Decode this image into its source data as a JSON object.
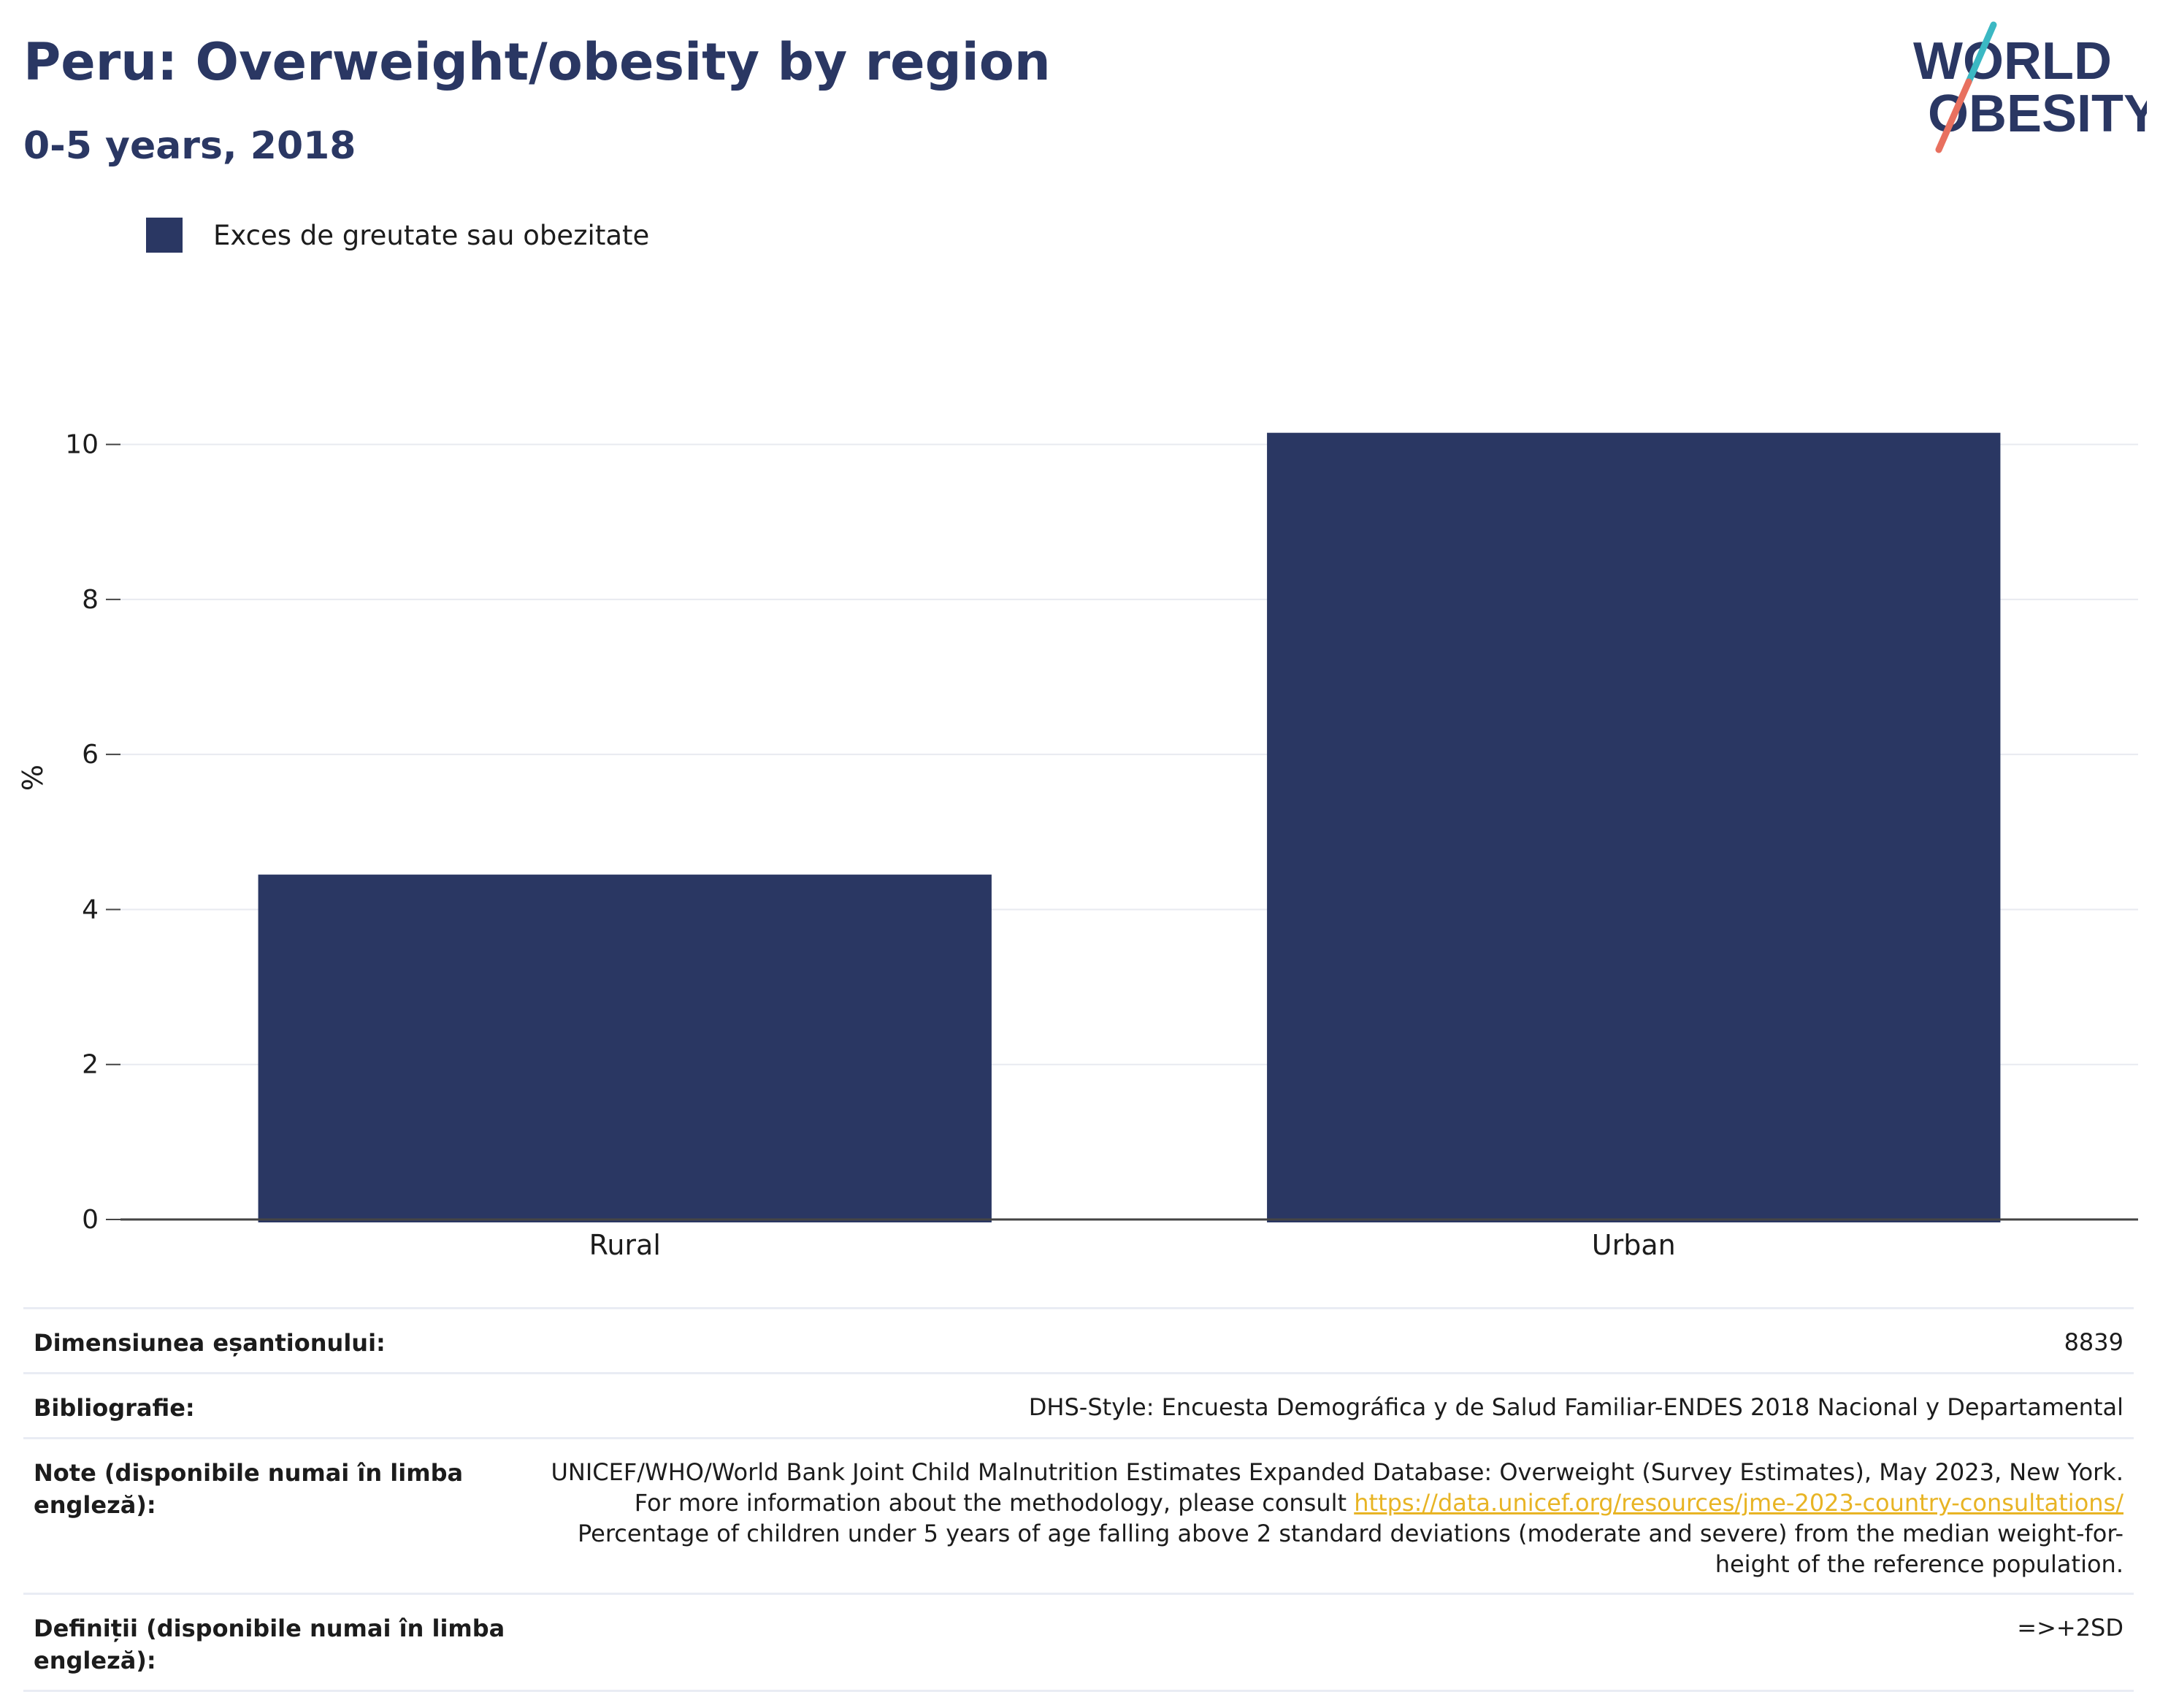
{
  "header": {
    "title": "Peru: Overweight/obesity by region",
    "subtitle": "0-5 years, 2018"
  },
  "logo": {
    "line1": "WORLD",
    "line2": "OBESITY",
    "accent_teal": "#3bb8c3",
    "accent_coral": "#e8705f",
    "text_color": "#2a3763"
  },
  "legend": {
    "items": [
      {
        "label": "Exces de greutate sau obezitate",
        "color": "#2a3763"
      }
    ]
  },
  "chart_data": {
    "type": "bar",
    "categories": [
      "Rural",
      "Urban"
    ],
    "series": [
      {
        "name": "Exces de greutate sau obezitate",
        "values": [
          4.45,
          10.15
        ],
        "color": "#2a3763"
      }
    ],
    "ylabel": "%",
    "xlabel": "",
    "ylim": [
      0,
      11.4
    ],
    "yticks": [
      0,
      2,
      4,
      6,
      8,
      10
    ],
    "grid": true,
    "legend_position": "top-left"
  },
  "meta": {
    "sample_size_label": "Dimensiunea eșantionului:",
    "sample_size_value": "8839",
    "bibliography_label": "Bibliografie:",
    "bibliography_value": "DHS-Style: Encuesta Demográfica y de Salud Familiar-ENDES 2018 Nacional y Departamental",
    "notes_label": "Note (disponibile numai în limba engleză):",
    "notes_text_1": "UNICEF/WHO/World Bank Joint Child Malnutrition Estimates Expanded Database: Overweight (Survey Estimates), May 2023, New York. For more information about the methodology, please consult",
    "notes_link": "https://data.unicef.org/resources/jme-2023-country-consultations/",
    "notes_text_2": "Percentage of children under 5 years of age falling above 2 standard deviations (moderate and severe) from the median weight-for-height of the reference population.",
    "definitions_label": "Definiții (disponibile numai în limba engleză):",
    "definitions_value": "=>+2SD"
  }
}
